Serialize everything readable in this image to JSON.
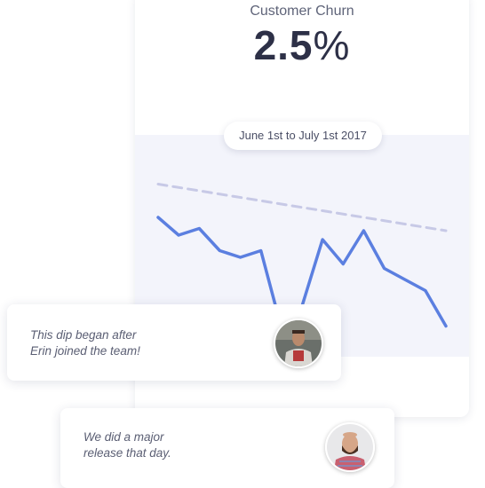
{
  "metric": {
    "title": "Customer Churn",
    "value": "2.5",
    "unit": "%"
  },
  "date_range": "June 1st to July 1st 2017",
  "colors": {
    "accent_line": "#5b7fe0",
    "trend_line": "#c7c9e6",
    "chart_background": "#f3f4fb"
  },
  "chart_data": {
    "type": "line",
    "ylim": [
      0,
      100
    ],
    "grid": false,
    "legend": "none",
    "series": [
      {
        "values": [
          62,
          54,
          57,
          47,
          44,
          47,
          12,
          22,
          52,
          41,
          56,
          39,
          34,
          29,
          13
        ],
        "style": "solid"
      },
      {
        "values": [
          77,
          56
        ],
        "style": "dashed"
      }
    ]
  },
  "comments": [
    {
      "text": "This dip began after\nErin joined the team!",
      "avatar_icon": "user-avatar"
    },
    {
      "text": "We did a major\nrelease that day.",
      "avatar_icon": "user-avatar"
    }
  ]
}
